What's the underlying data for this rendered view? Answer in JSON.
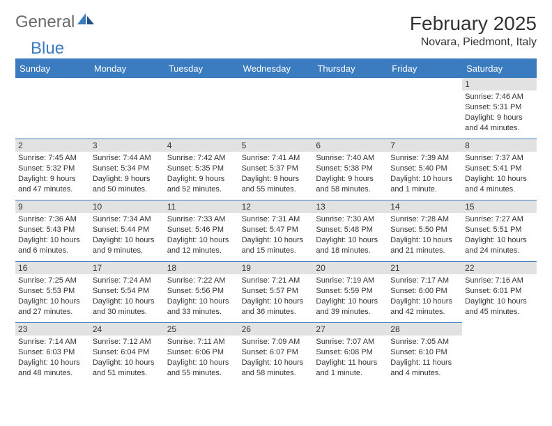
{
  "logo": {
    "part1": "General",
    "part2": "Blue"
  },
  "title": "February 2025",
  "location": "Novara, Piedmont, Italy",
  "colors": {
    "header_bg": "#3b7bbf",
    "header_text": "#ffffff",
    "daynum_bg": "#e2e2e2",
    "text": "#333333",
    "logo_gray": "#6a6a6a",
    "logo_blue": "#3b7bbf"
  },
  "layout": {
    "columns": 7,
    "first_day_column": 6
  },
  "day_headers": [
    "Sunday",
    "Monday",
    "Tuesday",
    "Wednesday",
    "Thursday",
    "Friday",
    "Saturday"
  ],
  "days": [
    {
      "n": "1",
      "sunrise": "Sunrise: 7:46 AM",
      "sunset": "Sunset: 5:31 PM",
      "daylight": "Daylight: 9 hours and 44 minutes."
    },
    {
      "n": "2",
      "sunrise": "Sunrise: 7:45 AM",
      "sunset": "Sunset: 5:32 PM",
      "daylight": "Daylight: 9 hours and 47 minutes."
    },
    {
      "n": "3",
      "sunrise": "Sunrise: 7:44 AM",
      "sunset": "Sunset: 5:34 PM",
      "daylight": "Daylight: 9 hours and 50 minutes."
    },
    {
      "n": "4",
      "sunrise": "Sunrise: 7:42 AM",
      "sunset": "Sunset: 5:35 PM",
      "daylight": "Daylight: 9 hours and 52 minutes."
    },
    {
      "n": "5",
      "sunrise": "Sunrise: 7:41 AM",
      "sunset": "Sunset: 5:37 PM",
      "daylight": "Daylight: 9 hours and 55 minutes."
    },
    {
      "n": "6",
      "sunrise": "Sunrise: 7:40 AM",
      "sunset": "Sunset: 5:38 PM",
      "daylight": "Daylight: 9 hours and 58 minutes."
    },
    {
      "n": "7",
      "sunrise": "Sunrise: 7:39 AM",
      "sunset": "Sunset: 5:40 PM",
      "daylight": "Daylight: 10 hours and 1 minute."
    },
    {
      "n": "8",
      "sunrise": "Sunrise: 7:37 AM",
      "sunset": "Sunset: 5:41 PM",
      "daylight": "Daylight: 10 hours and 4 minutes."
    },
    {
      "n": "9",
      "sunrise": "Sunrise: 7:36 AM",
      "sunset": "Sunset: 5:43 PM",
      "daylight": "Daylight: 10 hours and 6 minutes."
    },
    {
      "n": "10",
      "sunrise": "Sunrise: 7:34 AM",
      "sunset": "Sunset: 5:44 PM",
      "daylight": "Daylight: 10 hours and 9 minutes."
    },
    {
      "n": "11",
      "sunrise": "Sunrise: 7:33 AM",
      "sunset": "Sunset: 5:46 PM",
      "daylight": "Daylight: 10 hours and 12 minutes."
    },
    {
      "n": "12",
      "sunrise": "Sunrise: 7:31 AM",
      "sunset": "Sunset: 5:47 PM",
      "daylight": "Daylight: 10 hours and 15 minutes."
    },
    {
      "n": "13",
      "sunrise": "Sunrise: 7:30 AM",
      "sunset": "Sunset: 5:48 PM",
      "daylight": "Daylight: 10 hours and 18 minutes."
    },
    {
      "n": "14",
      "sunrise": "Sunrise: 7:28 AM",
      "sunset": "Sunset: 5:50 PM",
      "daylight": "Daylight: 10 hours and 21 minutes."
    },
    {
      "n": "15",
      "sunrise": "Sunrise: 7:27 AM",
      "sunset": "Sunset: 5:51 PM",
      "daylight": "Daylight: 10 hours and 24 minutes."
    },
    {
      "n": "16",
      "sunrise": "Sunrise: 7:25 AM",
      "sunset": "Sunset: 5:53 PM",
      "daylight": "Daylight: 10 hours and 27 minutes."
    },
    {
      "n": "17",
      "sunrise": "Sunrise: 7:24 AM",
      "sunset": "Sunset: 5:54 PM",
      "daylight": "Daylight: 10 hours and 30 minutes."
    },
    {
      "n": "18",
      "sunrise": "Sunrise: 7:22 AM",
      "sunset": "Sunset: 5:56 PM",
      "daylight": "Daylight: 10 hours and 33 minutes."
    },
    {
      "n": "19",
      "sunrise": "Sunrise: 7:21 AM",
      "sunset": "Sunset: 5:57 PM",
      "daylight": "Daylight: 10 hours and 36 minutes."
    },
    {
      "n": "20",
      "sunrise": "Sunrise: 7:19 AM",
      "sunset": "Sunset: 5:59 PM",
      "daylight": "Daylight: 10 hours and 39 minutes."
    },
    {
      "n": "21",
      "sunrise": "Sunrise: 7:17 AM",
      "sunset": "Sunset: 6:00 PM",
      "daylight": "Daylight: 10 hours and 42 minutes."
    },
    {
      "n": "22",
      "sunrise": "Sunrise: 7:16 AM",
      "sunset": "Sunset: 6:01 PM",
      "daylight": "Daylight: 10 hours and 45 minutes."
    },
    {
      "n": "23",
      "sunrise": "Sunrise: 7:14 AM",
      "sunset": "Sunset: 6:03 PM",
      "daylight": "Daylight: 10 hours and 48 minutes."
    },
    {
      "n": "24",
      "sunrise": "Sunrise: 7:12 AM",
      "sunset": "Sunset: 6:04 PM",
      "daylight": "Daylight: 10 hours and 51 minutes."
    },
    {
      "n": "25",
      "sunrise": "Sunrise: 7:11 AM",
      "sunset": "Sunset: 6:06 PM",
      "daylight": "Daylight: 10 hours and 55 minutes."
    },
    {
      "n": "26",
      "sunrise": "Sunrise: 7:09 AM",
      "sunset": "Sunset: 6:07 PM",
      "daylight": "Daylight: 10 hours and 58 minutes."
    },
    {
      "n": "27",
      "sunrise": "Sunrise: 7:07 AM",
      "sunset": "Sunset: 6:08 PM",
      "daylight": "Daylight: 11 hours and 1 minute."
    },
    {
      "n": "28",
      "sunrise": "Sunrise: 7:05 AM",
      "sunset": "Sunset: 6:10 PM",
      "daylight": "Daylight: 11 hours and 4 minutes."
    }
  ]
}
